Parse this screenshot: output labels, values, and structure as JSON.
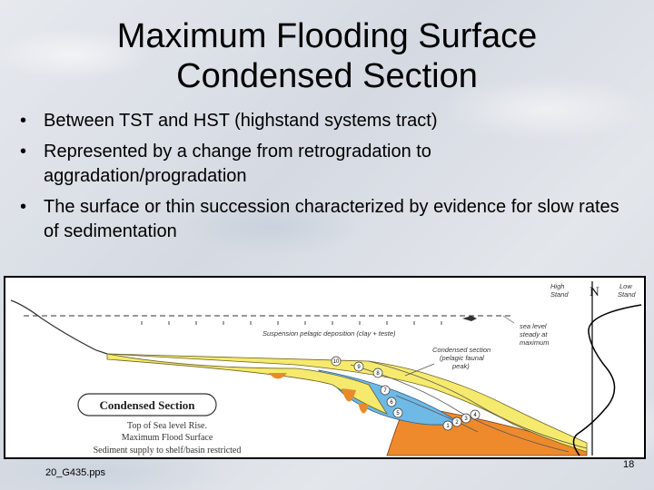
{
  "slide": {
    "title_line1": "Maximum Flooding Surface",
    "title_line2": "Condensed Section",
    "bullets": [
      "Between TST and HST (highstand systems tract)",
      "Represented by a change from retrogradation to aggradation/progradation",
      "The surface or thin succession characterized by evidence for slow rates of sedimentation"
    ],
    "bullet_marker": "•",
    "footer": "20_G435.pps",
    "page_number": "18"
  },
  "figure": {
    "high_stand": [
      "High",
      "Stand"
    ],
    "n_label": "N",
    "low_stand": [
      "Low",
      "Stand"
    ],
    "suspension_label": "Suspension pelagic deposition (clay + teste)",
    "sea_level_label": [
      "sea level",
      "steady at",
      "maximum"
    ],
    "condensed_note": [
      "Condensed section",
      "(pelagic faunal",
      "peak)"
    ],
    "box_label": "Condensed Section",
    "caption_lines": [
      "Top of Sea level Rise.",
      "Maximum Flood Surface",
      "Sediment supply to shelf/basin restricted"
    ],
    "layer_numbers": [
      "1",
      "2",
      "3",
      "4",
      "5",
      "6",
      "7",
      "8",
      "9",
      "10"
    ],
    "colors": {
      "yellow": "#f6ea6e",
      "blue": "#6fb9e6",
      "orange": "#ee8a2c",
      "frame": "#000000"
    }
  }
}
